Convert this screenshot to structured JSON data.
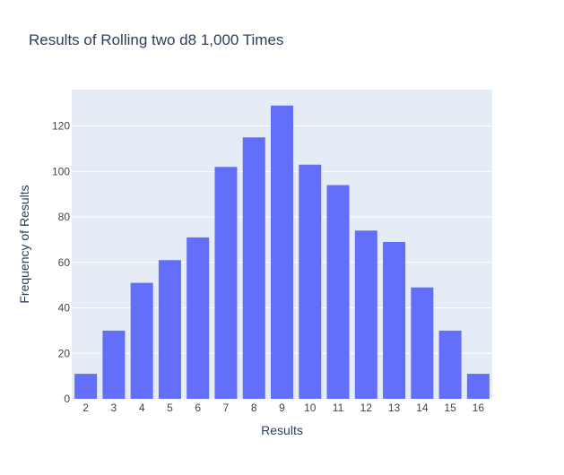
{
  "chart_data": {
    "type": "bar",
    "title": "Results of Rolling two d8 1,000 Times",
    "xlabel": "Results",
    "ylabel": "Frequency of Results",
    "categories": [
      "2",
      "3",
      "4",
      "5",
      "6",
      "7",
      "8",
      "9",
      "10",
      "11",
      "12",
      "13",
      "14",
      "15",
      "16"
    ],
    "values": [
      11,
      30,
      51,
      61,
      71,
      102,
      115,
      129,
      103,
      94,
      74,
      69,
      49,
      30,
      11
    ],
    "ylim": [
      0,
      136
    ],
    "yticks": [
      0,
      20,
      40,
      60,
      80,
      100,
      120
    ],
    "grid": true,
    "legend": "none",
    "colors": {
      "bar": "#636efa",
      "plot_background": "#e5ecf6",
      "gridline": "#ffffff",
      "text": "#2a3f5f",
      "tick_text": "#444444"
    }
  }
}
